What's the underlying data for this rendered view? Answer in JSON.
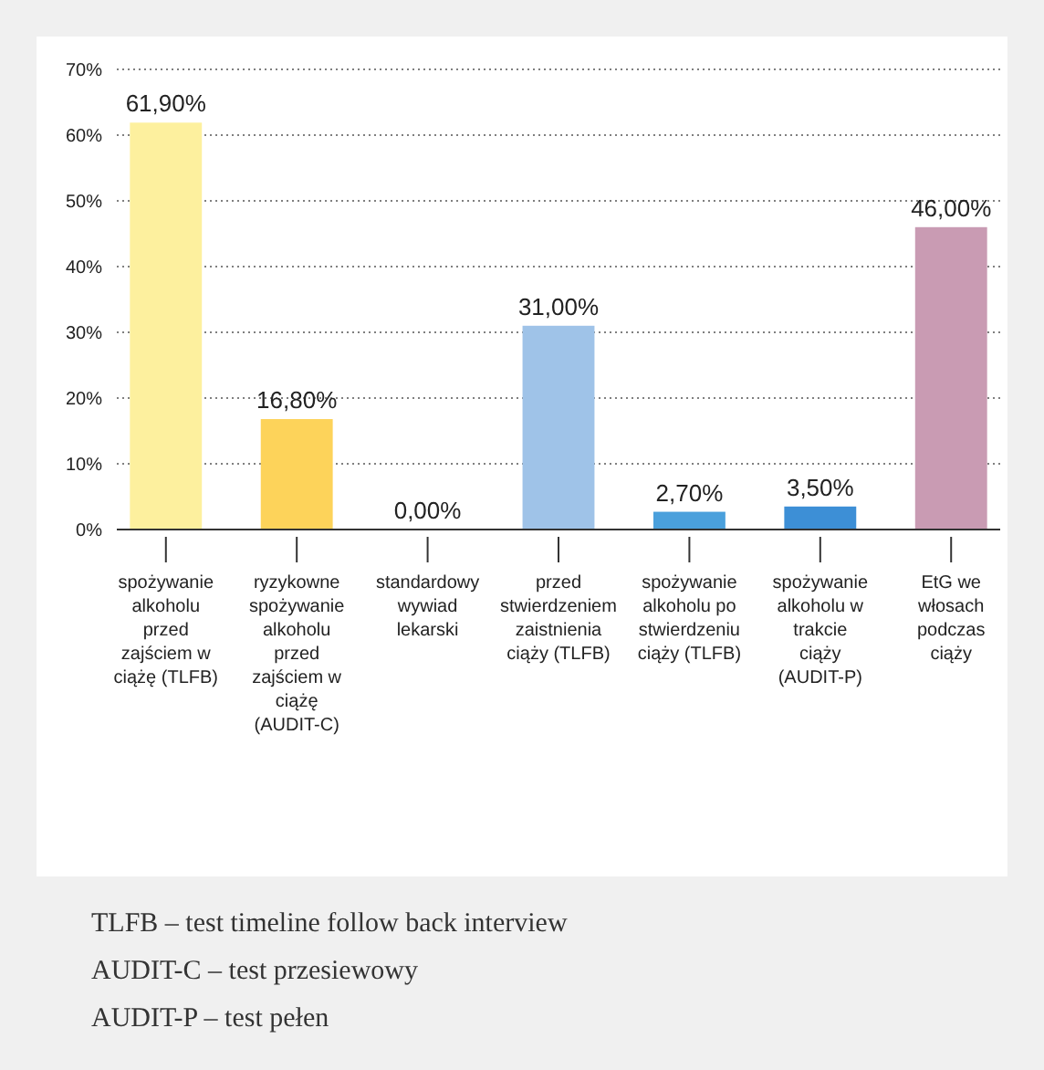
{
  "chart_data": {
    "type": "bar",
    "categories": [
      "spożywanie alkoholu przed zajściem w ciążę (TLFB)",
      "ryzykowne spożywanie alkoholu przed zajściem w ciążę (AUDIT-C)",
      "standardowy wywiad lekarski",
      "przed stwierdzeniem zaistnienia ciąży (TLFB)",
      "spożywanie alkoholu po stwierdzeniu ciąży (TLFB)",
      "spożywanie alkoholu w trakcie ciąży (AUDIT-P)",
      "EtG we włosach podczas ciąży"
    ],
    "values": [
      61.9,
      16.8,
      0,
      31,
      2.7,
      3.5,
      46
    ],
    "colors": [
      "#fdf09e",
      "#fdd35a",
      "#9fc3e8",
      "#9fc3e8",
      "#4aa0dc",
      "#3d8fd6",
      "#c99bb3"
    ],
    "value_labels": [
      "61,90%",
      "16,80%",
      "0,00%",
      "31,00%",
      "2,70%",
      "3,50%",
      "46,00%"
    ],
    "ylim": [
      0,
      70
    ],
    "yticks": [
      {
        "value": 0,
        "label": "0%"
      },
      {
        "value": 10,
        "label": "10%"
      },
      {
        "value": 20,
        "label": "20%"
      },
      {
        "value": 30,
        "label": "30%"
      },
      {
        "value": 40,
        "label": "40%"
      },
      {
        "value": 50,
        "label": "50%"
      },
      {
        "value": 60,
        "label": "60%"
      },
      {
        "value": 70,
        "label": "70%"
      }
    ],
    "grid": "y",
    "annotations": [
      "TLFB – test timeline follow back interview",
      "AUDIT-C – test przesiewowy",
      "AUDIT-P – test pełen"
    ]
  }
}
